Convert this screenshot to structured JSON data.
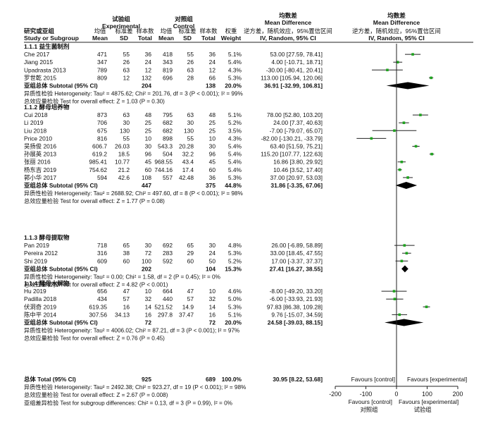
{
  "header": {
    "exp_group_cn": "试验组",
    "exp_group_en": "Experimental",
    "ctrl_group_cn": "对照组",
    "ctrl_group_en": "Control",
    "md_cn": "均数差",
    "md_en": "Mean Difference",
    "md_sub": "逆方差，随机效应，95%置信区间",
    "md_sub2": "IV, Random, 95% CI",
    "plot_cn": "均数差",
    "plot_en": "Mean Difference",
    "plot_sub": "逆方差，随机效应，95%置信区间",
    "plot_sub2": "IV, Random, 95% CI",
    "study_cn": "研究或亚组",
    "study_en": "Study or Subgroup",
    "col_mean_cn": "均值",
    "col_sd_cn": "标准差",
    "col_total_cn": "样本数",
    "col_weight_cn": "权重",
    "col_mean": "Mean",
    "col_sd": "SD",
    "col_total": "Total",
    "col_weight": "Weight"
  },
  "chart_data": {
    "type": "forest",
    "xlim": [
      -200,
      200
    ],
    "xticks": [
      "-200",
      "-100",
      "0",
      "100",
      "200"
    ],
    "favours_top_left": "Favours [control]",
    "favours_top_right": "Favours [experimental]",
    "favours_bottom_left": "Favours [control]",
    "favours_bottom_right": "Favours [experimental]",
    "favours_bottom_left_cn": "对照组",
    "favours_bottom_right_cn": "试验组",
    "groups": [
      {
        "title": "1.1.1 益生菌制剂",
        "studies": [
          {
            "name": "Che 2017",
            "em": "471",
            "esd": "55",
            "en": "36",
            "cm": "418",
            "csd": "55",
            "cn": "36",
            "w": "5.1%",
            "ci": "53.00 [27.59, 78.41]",
            "md": 53.0,
            "lo": 27.59,
            "hi": 78.41
          },
          {
            "name": "Jiang 2015",
            "em": "347",
            "esd": "26",
            "en": "24",
            "cm": "343",
            "csd": "26",
            "cn": "24",
            "w": "5.4%",
            "ci": "4.00 [-10.71, 18.71]",
            "md": 4.0,
            "lo": -10.71,
            "hi": 18.71
          },
          {
            "name": "Upadrasta 2013",
            "em": "789",
            "esd": "63",
            "en": "12",
            "cm": "819",
            "csd": "63",
            "cn": "12",
            "w": "4.3%",
            "ci": "-30.00 [-80.41, 20.41]",
            "md": -30.0,
            "lo": -80.41,
            "hi": 20.41
          },
          {
            "name": "罗世乾 2015",
            "em": "809",
            "esd": "12",
            "en": "132",
            "cm": "696",
            "csd": "28",
            "cn": "66",
            "w": "5.3%",
            "ci": "113.00 [105.94, 120.06]",
            "md": 113.0,
            "lo": 105.94,
            "hi": 120.06
          }
        ],
        "subtotal_label": "亚组总体 Subtotal (95% CI)",
        "subtotal_en": "204",
        "subtotal_cn": "138",
        "subtotal_w": "20.0%",
        "subtotal_ci": "36.91 [-32.99, 106.81]",
        "subtotal_md": 36.91,
        "subtotal_lo": -32.99,
        "subtotal_hi": 106.81,
        "het": "异质性检验 Heterogeneity: Tau² = 4875.62; Chi² = 201.76, df = 3 (P < 0.001); I² = 99%",
        "test": "总效应量检验 Test for overall effect: Z = 1.03 (P = 0.30)"
      },
      {
        "title": "1.1.2 酵母培养物",
        "studies": [
          {
            "name": "Cui 2018",
            "em": "873",
            "esd": "63",
            "en": "48",
            "cm": "795",
            "csd": "63",
            "cn": "48",
            "w": "5.1%",
            "ci": "78.00 [52.80, 103.20]",
            "md": 78.0,
            "lo": 52.8,
            "hi": 103.2
          },
          {
            "name": "Li 2019",
            "em": "706",
            "esd": "30",
            "en": "25",
            "cm": "682",
            "csd": "30",
            "cn": "25",
            "w": "5.2%",
            "ci": "24.00 [7.37, 40.63]",
            "md": 24.0,
            "lo": 7.37,
            "hi": 40.63
          },
          {
            "name": "Liu 2018",
            "em": "675",
            "esd": "130",
            "en": "25",
            "cm": "682",
            "csd": "130",
            "cn": "25",
            "w": "3.5%",
            "ci": "-7.00 [-79.07, 65.07]",
            "md": -7.0,
            "lo": -79.07,
            "hi": 65.07
          },
          {
            "name": "Price 2010",
            "em": "816",
            "esd": "55",
            "en": "10",
            "cm": "898",
            "csd": "55",
            "cn": "10",
            "w": "4.3%",
            "ci": "-82.00 [-130.21, -33.79]",
            "md": -82.0,
            "lo": -130.21,
            "hi": -33.79
          },
          {
            "name": "吴扬俊 2016",
            "em": "606.7",
            "esd": "26.03",
            "en": "30",
            "cm": "543.3",
            "csd": "20.28",
            "cn": "30",
            "w": "5.4%",
            "ci": "63.40 [51.59, 75.21]",
            "md": 63.4,
            "lo": 51.59,
            "hi": 75.21
          },
          {
            "name": "孙展英 2013",
            "em": "619.2",
            "esd": "18.5",
            "en": "96",
            "cm": "504",
            "csd": "32.2",
            "cn": "96",
            "w": "5.4%",
            "ci": "115.20 [107.77, 122.63]",
            "md": 115.2,
            "lo": 107.77,
            "hi": 122.63
          },
          {
            "name": "张丽 2016",
            "em": "985.41",
            "esd": "10.77",
            "en": "45",
            "cm": "968.55",
            "csd": "43.4",
            "cn": "45",
            "w": "5.4%",
            "ci": "16.86 [3.80, 29.92]",
            "md": 16.86,
            "lo": 3.8,
            "hi": 29.92
          },
          {
            "name": "杨东吉 2019",
            "em": "754.62",
            "esd": "21.2",
            "en": "60",
            "cm": "744.16",
            "csd": "17.4",
            "cn": "60",
            "w": "5.4%",
            "ci": "10.46 [3.52, 17.40]",
            "md": 10.46,
            "lo": 3.52,
            "hi": 17.4
          },
          {
            "name": "郭小华 2017",
            "em": "594",
            "esd": "42.6",
            "en": "108",
            "cm": "557",
            "csd": "42.48",
            "cn": "36",
            "w": "5.3%",
            "ci": "37.00 [20.97, 53.03]",
            "md": 37.0,
            "lo": 20.97,
            "hi": 53.03
          }
        ],
        "subtotal_label": "亚组总体 Subtotal (95% CI)",
        "subtotal_en": "447",
        "subtotal_cn": "375",
        "subtotal_w": "44.8%",
        "subtotal_ci": "31.86 [-3.35, 67.06]",
        "subtotal_md": 31.86,
        "subtotal_lo": -3.35,
        "subtotal_hi": 67.06,
        "het": "异质性检验 Heterogeneity: Tau² = 2688.92; Chi² = 497.60, df = 8 (P < 0.001); I² = 98%",
        "test": "总效应量检验 Test for overall effect: Z = 1.77 (P = 0.08)"
      },
      {
        "title": "1.1.3 酵母提取物",
        "studies": [
          {
            "name": "Pan 2019",
            "em": "718",
            "esd": "65",
            "en": "30",
            "cm": "692",
            "csd": "65",
            "cn": "30",
            "w": "4.8%",
            "ci": "26.00 [-6.89, 58.89]",
            "md": 26.0,
            "lo": -6.89,
            "hi": 58.89
          },
          {
            "name": "Pereira 2012",
            "em": "316",
            "esd": "38",
            "en": "72",
            "cm": "283",
            "csd": "29",
            "cn": "24",
            "w": "5.3%",
            "ci": "33.00 [18.45, 47.55]",
            "md": 33.0,
            "lo": 18.45,
            "hi": 47.55
          },
          {
            "name": "Shi 2019",
            "em": "609",
            "esd": "60",
            "en": "100",
            "cm": "592",
            "csd": "60",
            "cn": "50",
            "w": "5.2%",
            "ci": "17.00 [-3.37, 37.37]",
            "md": 17.0,
            "lo": -3.37,
            "hi": 37.37
          }
        ],
        "subtotal_label": "亚组总体 Subtotal (95% CI)",
        "subtotal_en": "202",
        "subtotal_cn": "104",
        "subtotal_w": "15.3%",
        "subtotal_ci": "27.41 [16.27, 38.55]",
        "subtotal_md": 27.41,
        "subtotal_lo": 16.27,
        "subtotal_hi": 38.55,
        "het": "异质性检验 Heterogeneity: Tau² = 0.00; Chi² = 1.58, df = 2 (P = 0.45); I² = 0%",
        "test": "总效应量检验 Test for overall effect: Z = 4.82 (P < 0.001)"
      },
      {
        "title": "1.1.4 酵母水解物",
        "studies": [
          {
            "name": "Hu 2019",
            "em": "656",
            "esd": "47",
            "en": "10",
            "cm": "664",
            "csd": "47",
            "cn": "10",
            "w": "4.6%",
            "ci": "-8.00 [-49.20, 33.20]",
            "md": -8.0,
            "lo": -49.2,
            "hi": 33.2
          },
          {
            "name": "Padilla 2018",
            "em": "434",
            "esd": "57",
            "en": "32",
            "cm": "440",
            "csd": "57",
            "cn": "32",
            "w": "5.0%",
            "ci": "-6.00 [-33.93, 21.93]",
            "md": -6.0,
            "lo": -33.93,
            "hi": 21.93
          },
          {
            "name": "伏洞奇 2019",
            "em": "619.35",
            "esd": "16",
            "en": "14",
            "cm": "521.52",
            "csd": "14.9",
            "cn": "14",
            "w": "5.3%",
            "ci": "97.83 [86.38, 109.28]",
            "md": 97.83,
            "lo": 86.38,
            "hi": 109.28
          },
          {
            "name": "陈中平 2014",
            "em": "307.56",
            "esd": "34.13",
            "en": "16",
            "cm": "297.8",
            "csd": "37.47",
            "cn": "16",
            "w": "5.1%",
            "ci": "9.76 [-15.07, 34.59]",
            "md": 9.76,
            "lo": -15.07,
            "hi": 34.59
          }
        ],
        "subtotal_label": "亚组总体 Subtotal (95% CI)",
        "subtotal_en": "72",
        "subtotal_cn": "72",
        "subtotal_w": "20.0%",
        "subtotal_ci": "24.58 [-39.03, 88.15]",
        "subtotal_md": 24.58,
        "subtotal_lo": -39.03,
        "subtotal_hi": 88.15,
        "het": "异质性检验 Heterogeneity: Tau² = 4006.02; Chi² = 87.21, df = 3 (P < 0.001); I² = 97%",
        "test": "总效应量检验 Test for overall effect: Z = 0.76 (P = 0.45)"
      }
    ],
    "total": {
      "label": "总体 Total (95% CI)",
      "en": "925",
      "cn": "689",
      "w": "100.0%",
      "ci": "30.95 [8.22, 53.68]",
      "md": 30.95,
      "lo": 8.22,
      "hi": 53.68,
      "het": "异质性检验 Heterogeneity: Tau² = 2492.38; Chi² = 923.27, df = 19 (P < 0.001); I² = 98%",
      "test": "总效应量检验 Test for overall effect: Z = 2.67 (P = 0.008)",
      "sub": "亚组差异检验 Test for subgroup differences: Chi² = 0.13, df = 3 (P = 0.99), I² = 0%"
    },
    "colors": {
      "square": "#1fa31f",
      "diamond": "#000000",
      "line": "#222222"
    }
  }
}
